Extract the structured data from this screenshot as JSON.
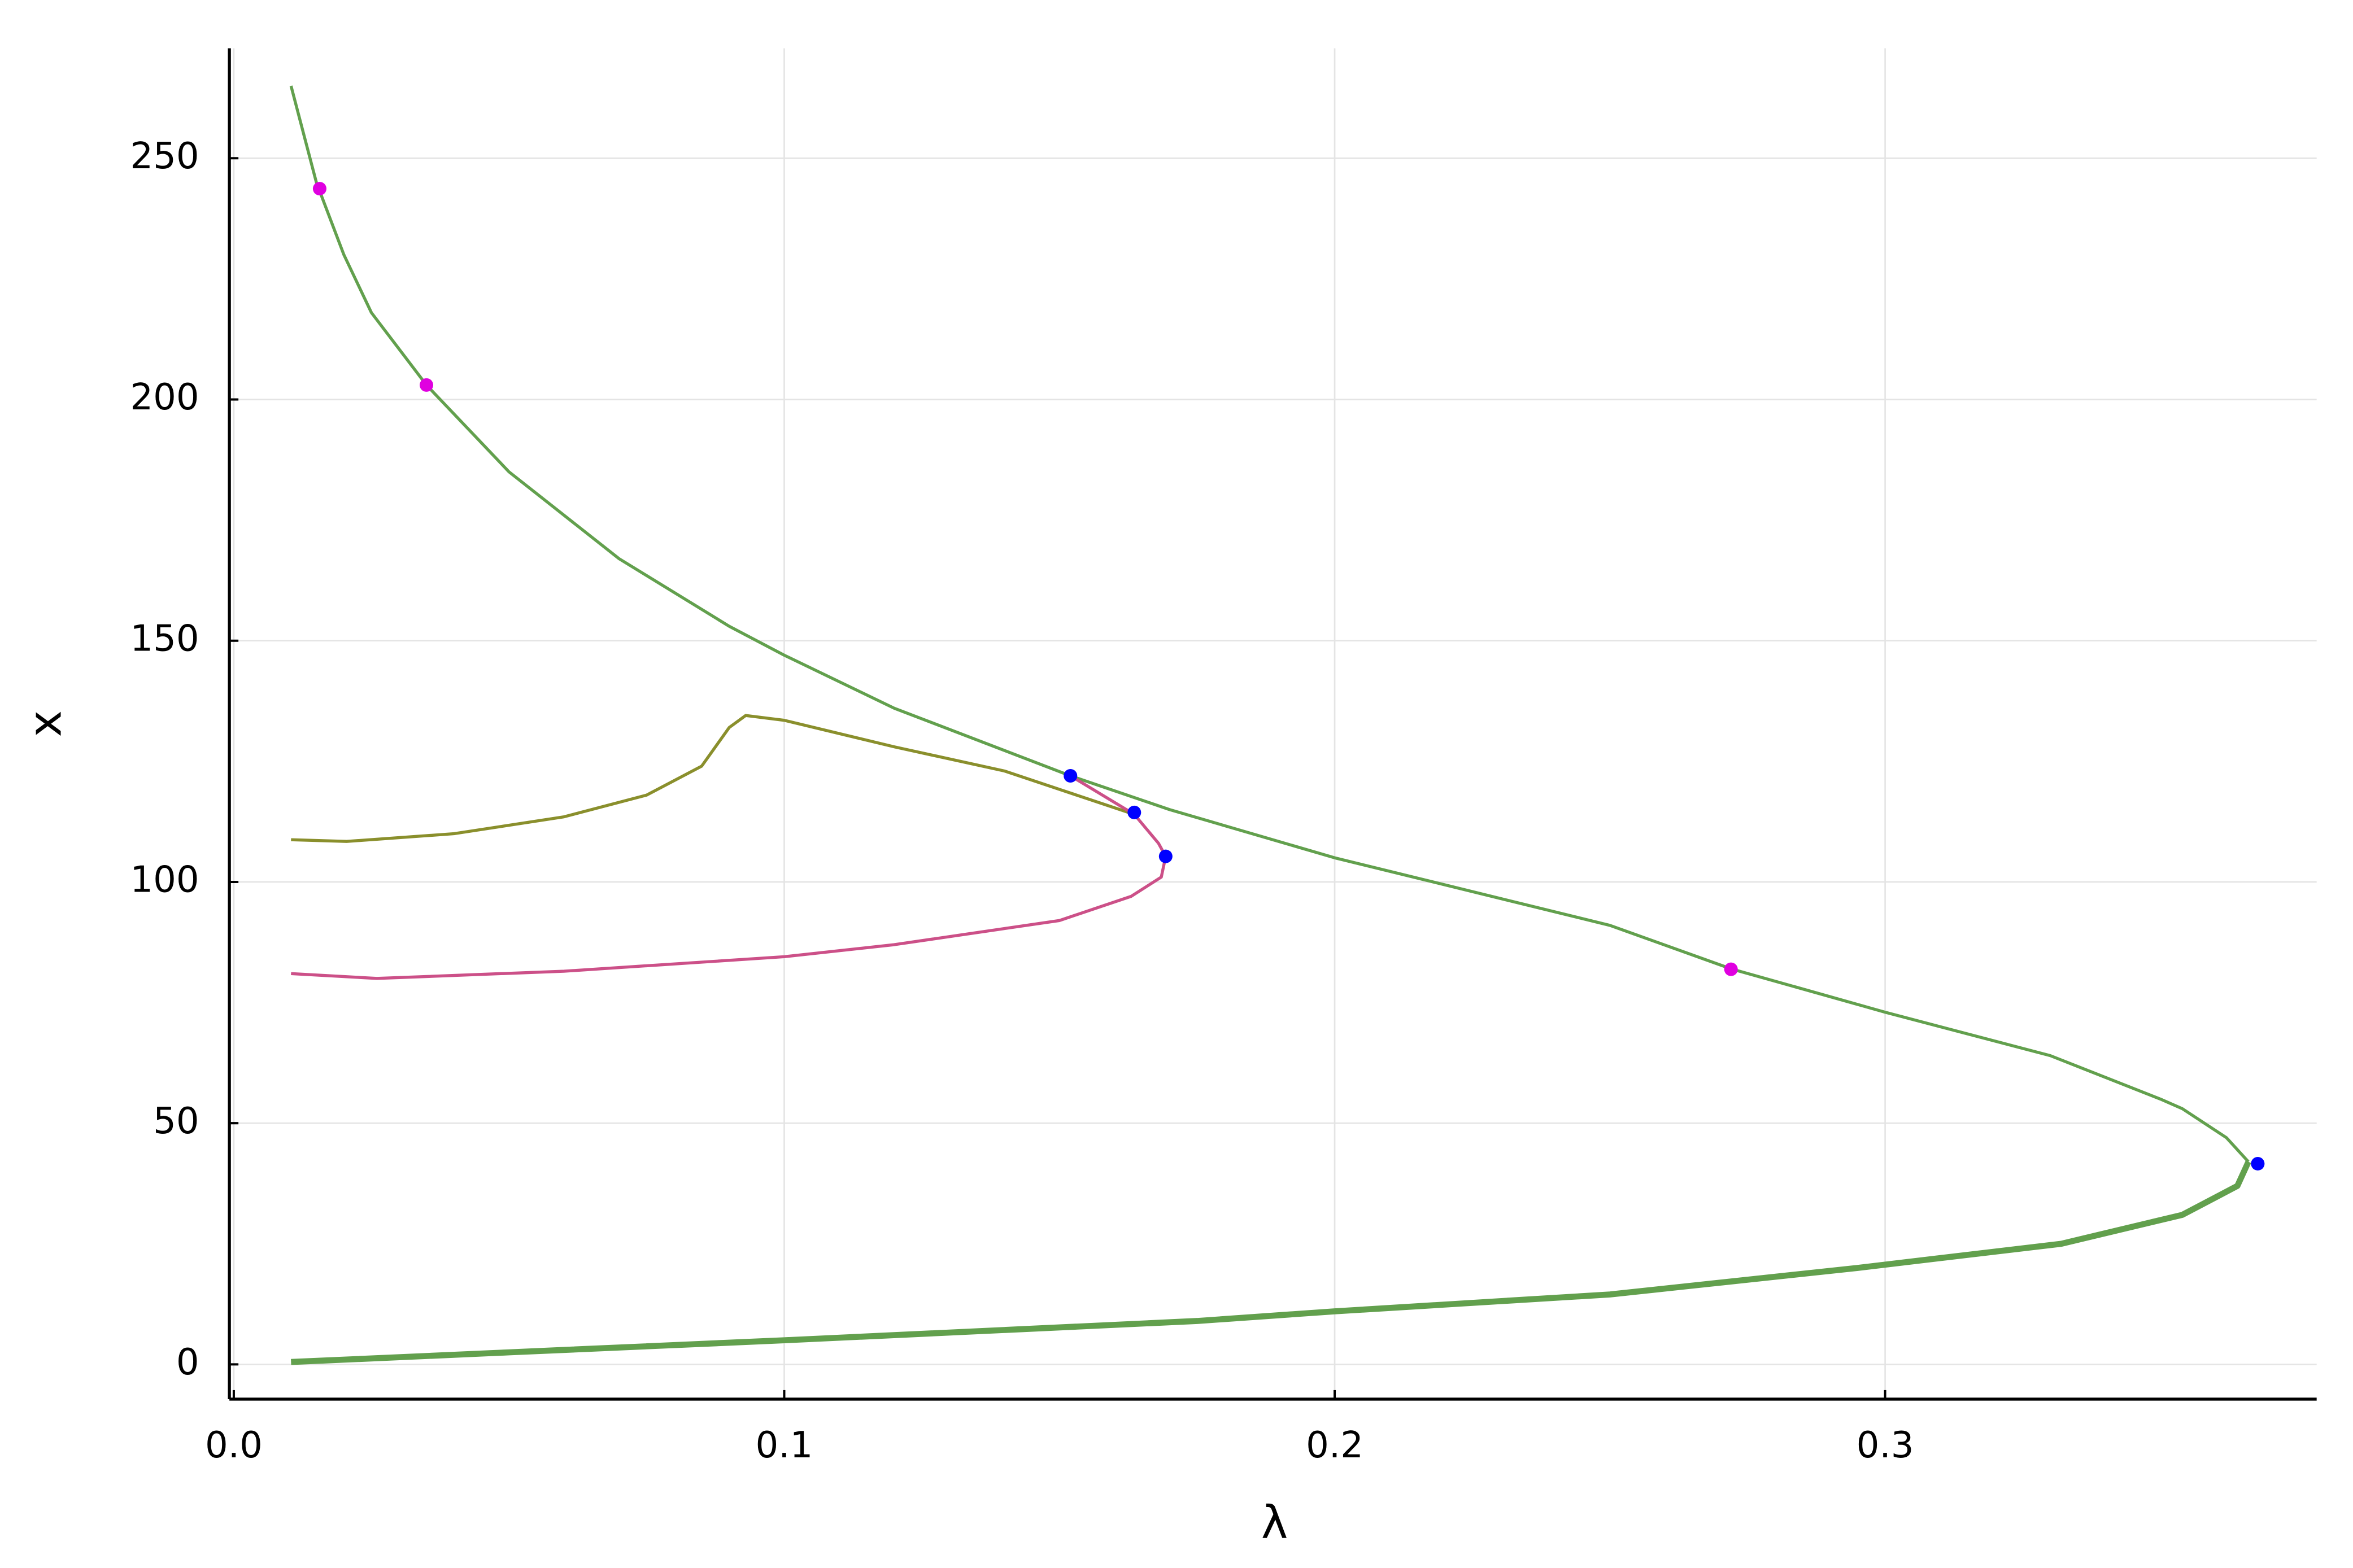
{
  "chart_data": {
    "type": "line",
    "xlabel": "λ",
    "ylabel": "x",
    "xlim": [
      -0.0008,
      0.3784
    ],
    "ylim": [
      -7.2,
      272.8
    ],
    "xticks": [
      {
        "value": 0,
        "label": "0.0"
      },
      0.1,
      0.2,
      0.3
    ],
    "yticks": [
      0,
      50,
      100,
      150,
      200,
      250
    ],
    "grid": true,
    "series": [
      {
        "style": "line",
        "color": "#62a04d",
        "width": 2,
        "x": [
          0.0104,
          0.015,
          0.02,
          0.025,
          0.035,
          0.05,
          0.07,
          0.09,
          0.1,
          0.12,
          0.152,
          0.17,
          0.2,
          0.25,
          0.272,
          0.3,
          0.33,
          0.35,
          0.354,
          0.362,
          0.366
        ],
        "values": [
          265,
          245,
          230,
          218,
          203,
          185,
          167,
          153,
          147,
          136,
          122,
          115,
          105,
          91,
          82,
          73,
          64,
          55,
          53,
          47,
          42
        ]
      },
      {
        "style": "line",
        "color": "#62a04d",
        "width": 4,
        "x": [
          0.366,
          0.364,
          0.354,
          0.332,
          0.295,
          0.25,
          0.2,
          0.175,
          0.1,
          0.05,
          0.0104
        ],
        "values": [
          42,
          37,
          31,
          25,
          20,
          14.5,
          11,
          9,
          5,
          2.5,
          0.5
        ]
      },
      {
        "style": "line",
        "color": "#8a8f2c",
        "width": 2,
        "x": [
          0.0104,
          0.0205,
          0.04,
          0.06,
          0.075,
          0.085,
          0.09,
          0.093,
          0.1,
          0.12,
          0.14,
          0.1636
        ],
        "values": [
          108.75,
          108.4,
          110,
          113.5,
          118,
          124,
          132,
          134.5,
          133.5,
          128,
          123,
          114
        ]
      },
      {
        "style": "line",
        "color": "#cc5088",
        "width": 2,
        "x": [
          0.152,
          0.1636,
          0.168,
          0.1693,
          0.1685,
          0.163,
          0.15,
          0.12,
          0.1,
          0.06,
          0.026,
          0.0104
        ],
        "values": [
          122,
          114,
          108,
          105.3,
          101,
          97,
          92,
          87,
          84.5,
          81.5,
          80,
          81
        ]
      },
      {
        "style": "points",
        "color": "#e000e0",
        "x": [
          0.0156,
          0.035,
          0.272
        ],
        "values": [
          243.7,
          203,
          81.9
        ]
      },
      {
        "style": "points",
        "color": "#0000ff",
        "x": [
          0.152,
          0.1636,
          0.1693,
          0.3677
        ],
        "values": [
          122,
          114.4,
          105.3,
          41.6
        ]
      }
    ]
  }
}
